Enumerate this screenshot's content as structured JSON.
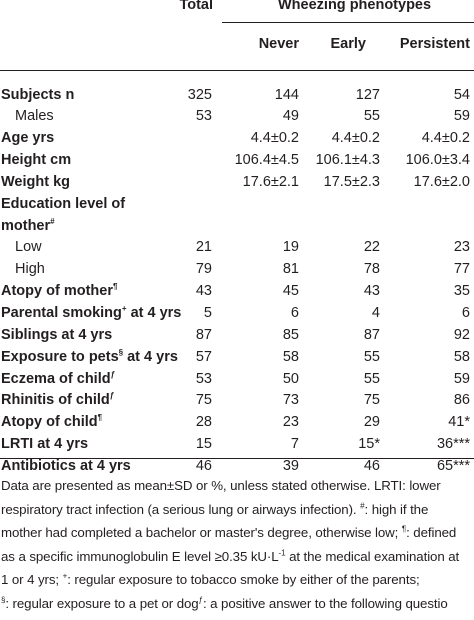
{
  "header": {
    "total": "Total",
    "group": "Wheezing phenotypes",
    "never": "Never",
    "early": "Early",
    "persistent": "Persistent"
  },
  "rows": [
    {
      "label": "Subjects n",
      "bold": true,
      "total": "325",
      "never": "144",
      "early": "127",
      "persistent": "54"
    },
    {
      "label": "Males",
      "indent": true,
      "total": "53",
      "never": "49",
      "early": "55",
      "persistent": "59"
    },
    {
      "label": "Age yrs",
      "bold": true,
      "total": "",
      "never": "4.4±0.2",
      "early": "4.4±0.2",
      "persistent": "4.4±0.2"
    },
    {
      "label": "Height cm",
      "bold": true,
      "total": "",
      "never": "106.4±4.5",
      "early": "106.1±4.3",
      "persistent": "106.0±3.4"
    },
    {
      "label": "Weight kg",
      "bold": true,
      "total": "",
      "never": "17.6±2.1",
      "early": "17.5±2.3",
      "persistent": "17.6±2.0"
    },
    {
      "label": "Education level of",
      "bold": true,
      "total": "",
      "never": "",
      "early": "",
      "persistent": ""
    },
    {
      "label": "mother",
      "sup": "#",
      "bold": true,
      "total": "",
      "never": "",
      "early": "",
      "persistent": ""
    },
    {
      "label": "Low",
      "indent": true,
      "total": "21",
      "never": "19",
      "early": "22",
      "persistent": "23"
    },
    {
      "label": "High",
      "indent": true,
      "total": "79",
      "never": "81",
      "early": "78",
      "persistent": "77"
    },
    {
      "label": "Atopy of mother",
      "sup": "¶",
      "bold": true,
      "total": "43",
      "never": "45",
      "early": "43",
      "persistent": "35"
    },
    {
      "label": "Parental smoking",
      "sup": "+",
      "label2": " at 4 yrs",
      "bold": true,
      "total": "5",
      "never": "6",
      "early": "4",
      "persistent": "6"
    },
    {
      "label": "Siblings at 4 yrs",
      "bold": true,
      "total": "87",
      "never": "85",
      "early": "87",
      "persistent": "92"
    },
    {
      "label": "Exposure to pets",
      "sup": "§",
      "label2": " at 4 yrs",
      "bold": true,
      "total": "57",
      "never": "58",
      "early": "55",
      "persistent": "58"
    },
    {
      "label": "Eczema of child",
      "sup": "ƒ",
      "bold": true,
      "total": "53",
      "never": "50",
      "early": "55",
      "persistent": "59"
    },
    {
      "label": "Rhinitis of child",
      "sup": "ƒ",
      "bold": true,
      "total": "75",
      "never": "73",
      "early": "75",
      "persistent": "86"
    },
    {
      "label": "Atopy of child",
      "sup": "¶",
      "bold": true,
      "total": "28",
      "never": "23",
      "early": "29",
      "persistent": "41*"
    },
    {
      "label": "LRTI at 4 yrs",
      "bold": true,
      "total": "15",
      "never": "7",
      "early": "15*",
      "persistent": "36***"
    },
    {
      "label": "Antibiotics at 4 yrs",
      "bold": true,
      "total": "46",
      "never": "39",
      "early": "46",
      "persistent": "65***"
    }
  ],
  "footnote": {
    "line1": "Data are presented as mean±SD or %, unless stated otherwise. LRTI: lower",
    "line2": "respiratory tract infection (a serious lung or airways infection).",
    "line2b": ": high if the",
    "line3": "mother had completed a bachelor or master's degree, otherwise low;",
    "line3b": ": defined",
    "line4": "as a specific immunoglobulin E level ≥0.35 kU·L",
    "line4sup": "-1",
    "line4b": " at the medical examination at",
    "line5": "1 or 4 yrs;",
    "line5b": ": regular exposure to tobacco smoke by either of the parents;",
    "line6": ": regular exposure to a pet or dog",
    "line6b": ": a positive answer to the following questio",
    "sym_hash": "#",
    "sym_pil": "¶",
    "sym_plus": "+",
    "sym_sect": "§",
    "sym_f": "ƒ"
  }
}
